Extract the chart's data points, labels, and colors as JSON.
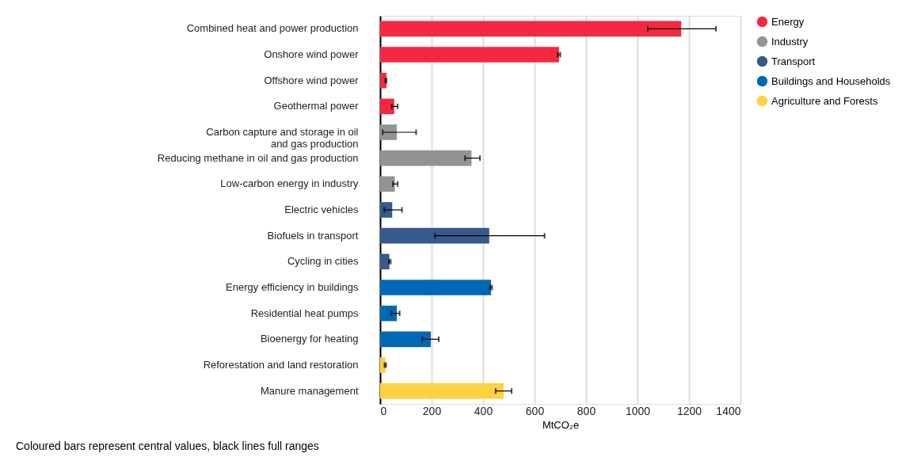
{
  "chart_data": {
    "type": "bar",
    "orientation": "horizontal",
    "xlabel": "MtCO₂e",
    "xlim": [
      0,
      1400
    ],
    "xticks": [
      0,
      200,
      400,
      600,
      800,
      1000,
      1200,
      1400
    ],
    "grid": "x",
    "legend": "right",
    "annotations": [
      "Coloured bars represent central values, black lines full ranges"
    ],
    "categories": [
      "Combined heat and power production",
      "Onshore wind power",
      "Offshore wind power",
      "Geothermal power",
      "Carbon capture and storage in oil\nand gas production",
      "Reducing methane in oil and gas production",
      "Low-carbon energy in industry",
      "Electric vehicles",
      "Biofuels in transport",
      "Cycling in cities",
      "Energy efficiency in buildings",
      "Residential heat pumps",
      "Bioenergy for heating",
      "Reforestation and land restoration",
      "Manure management"
    ],
    "series": [
      {
        "name": "Energy",
        "color": "#f42941",
        "values": [
          1170,
          695,
          25,
          55,
          null,
          null,
          null,
          null,
          null,
          null,
          null,
          null,
          null,
          null,
          null
        ],
        "errors": [
          [
            1040,
            1305
          ],
          [
            690,
            700
          ],
          [
            20,
            25
          ],
          [
            45,
            68
          ],
          null,
          null,
          null,
          null,
          null,
          null,
          null,
          null,
          null,
          null,
          null
        ]
      },
      {
        "name": "Industry",
        "color": "#939393",
        "values": [
          null,
          null,
          null,
          null,
          65,
          355,
          57,
          null,
          null,
          null,
          null,
          null,
          null,
          null,
          null
        ],
        "errors": [
          null,
          null,
          null,
          null,
          [
            10,
            140
          ],
          [
            330,
            388
          ],
          [
            50,
            68
          ],
          null,
          null,
          null,
          null,
          null,
          null,
          null,
          null
        ]
      },
      {
        "name": "Transport",
        "color": "#365a8c",
        "values": [
          null,
          null,
          null,
          null,
          null,
          null,
          null,
          47,
          424,
          36,
          null,
          null,
          null,
          null,
          null
        ],
        "errors": [
          null,
          null,
          null,
          null,
          null,
          null,
          null,
          [
            16,
            85
          ],
          [
            213,
            639
          ],
          [
            34,
            41
          ],
          null,
          null,
          null,
          null,
          null
        ]
      },
      {
        "name": "Buildings and Households",
        "color": "#0068b4",
        "values": [
          null,
          null,
          null,
          null,
          null,
          null,
          null,
          null,
          null,
          null,
          431,
          65,
          197,
          null,
          null
        ],
        "errors": [
          null,
          null,
          null,
          null,
          null,
          null,
          null,
          null,
          null,
          null,
          [
            427,
            435
          ],
          [
            44,
            76
          ],
          [
            164,
            228
          ],
          null,
          null
        ]
      },
      {
        "name": "Agriculture and Forests",
        "color": "#fdd13f",
        "values": [
          null,
          null,
          null,
          null,
          null,
          null,
          null,
          null,
          null,
          null,
          null,
          null,
          null,
          21,
          480
        ],
        "errors": [
          null,
          null,
          null,
          null,
          null,
          null,
          null,
          null,
          null,
          null,
          null,
          null,
          null,
          [
            17,
            23
          ],
          [
            449,
            511
          ]
        ]
      }
    ]
  }
}
